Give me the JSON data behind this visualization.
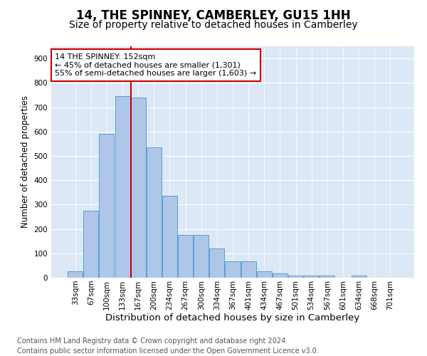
{
  "title": "14, THE SPINNEY, CAMBERLEY, GU15 1HH",
  "subtitle": "Size of property relative to detached houses in Camberley",
  "xlabel": "Distribution of detached houses by size in Camberley",
  "ylabel": "Number of detached properties",
  "footnote": "Contains HM Land Registry data © Crown copyright and database right 2024.\nContains public sector information licensed under the Open Government Licence v3.0.",
  "bar_labels": [
    "33sqm",
    "67sqm",
    "100sqm",
    "133sqm",
    "167sqm",
    "200sqm",
    "234sqm",
    "267sqm",
    "300sqm",
    "334sqm",
    "367sqm",
    "401sqm",
    "434sqm",
    "467sqm",
    "501sqm",
    "534sqm",
    "567sqm",
    "601sqm",
    "634sqm",
    "668sqm",
    "701sqm"
  ],
  "bar_values": [
    27,
    275,
    590,
    745,
    740,
    535,
    335,
    175,
    175,
    120,
    68,
    68,
    25,
    18,
    10,
    10,
    10,
    0,
    10,
    0,
    0
  ],
  "bar_color": "#aec6e8",
  "bar_edge_color": "#5a9fd4",
  "vline_color": "#cc0000",
  "annotation_text": "14 THE SPINNEY: 152sqm\n← 45% of detached houses are smaller (1,301)\n55% of semi-detached houses are larger (1,603) →",
  "annotation_box_color": "#ffffff",
  "annotation_box_edge_color": "#cc0000",
  "ylim": [
    0,
    950
  ],
  "yticks": [
    0,
    100,
    200,
    300,
    400,
    500,
    600,
    700,
    800,
    900
  ],
  "plot_bg_color": "#dce8f5",
  "title_fontsize": 12,
  "subtitle_fontsize": 10,
  "xlabel_fontsize": 9.5,
  "ylabel_fontsize": 8.5,
  "tick_fontsize": 7.5,
  "annotation_fontsize": 8,
  "footnote_fontsize": 7
}
